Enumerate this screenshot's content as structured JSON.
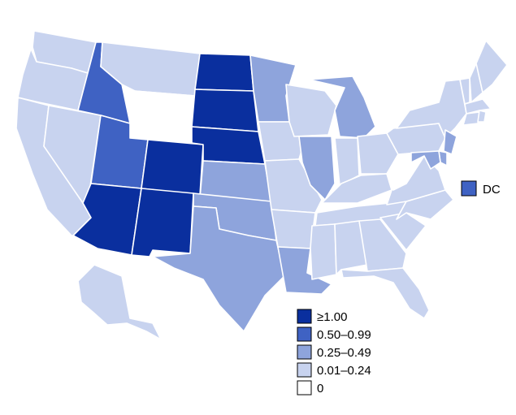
{
  "colors": {
    "c4": "#0a2f9e",
    "c3": "#3f62c3",
    "c2": "#8ea4dc",
    "c1": "#c8d3ef",
    "c0": "#ffffff"
  },
  "legend": {
    "items": [
      {
        "label": "≥1.00",
        "class": "c4"
      },
      {
        "label": "0.50–0.99",
        "class": "c3"
      },
      {
        "label": "0.25–0.49",
        "class": "c2"
      },
      {
        "label": "0.01–0.24",
        "class": "c1"
      },
      {
        "label": "0",
        "class": "c0"
      }
    ]
  },
  "dc": {
    "label": "DC",
    "class": "c3"
  },
  "states": {
    "WA": "c1",
    "OR": "c1",
    "CA": "c1",
    "NV": "c1",
    "ID": "c3",
    "MT": "c1",
    "WY": "c0",
    "UT": "c3",
    "AZ": "c4",
    "CO": "c4",
    "NM": "c4",
    "ND": "c4",
    "SD": "c4",
    "NE": "c4",
    "KS": "c2",
    "OK": "c2",
    "TX": "c2",
    "MN": "c2",
    "IA": "c1",
    "MO": "c1",
    "AR": "c1",
    "LA": "c2",
    "WI": "c1",
    "IL": "c2",
    "MI": "c2",
    "IN": "c1",
    "OH": "c1",
    "KY": "c1",
    "TN": "c1",
    "MS": "c1",
    "AL": "c1",
    "GA": "c1",
    "FL": "c1",
    "SC": "c1",
    "NC": "c1",
    "VA": "c1",
    "WV": "c0",
    "PA": "c1",
    "NY": "c1",
    "VT": "c1",
    "NH": "c1",
    "ME": "c1",
    "MA": "c1",
    "RI": "c1",
    "CT": "c1",
    "NJ": "c2",
    "DE": "c2",
    "MD": "c2",
    "AK": "c1",
    "HI": "c0"
  }
}
